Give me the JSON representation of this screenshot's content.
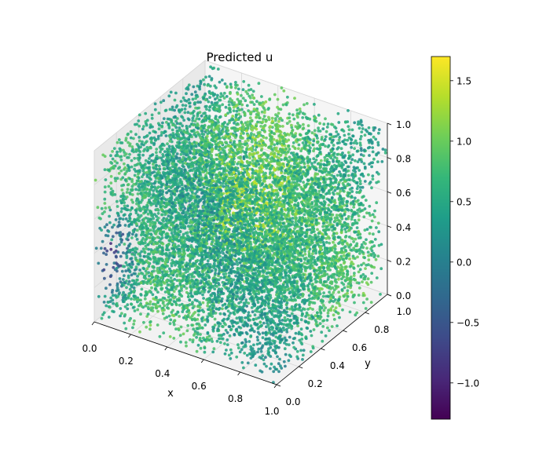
{
  "chart_data": {
    "type": "scatter",
    "projection": "3d",
    "title": "Predicted u",
    "xlabel": "x",
    "ylabel": "y",
    "zlabel": "",
    "xlim": [
      0,
      1
    ],
    "ylim": [
      0,
      1
    ],
    "zlim": [
      0,
      1
    ],
    "xticks": [
      "0.0",
      "0.2",
      "0.4",
      "0.6",
      "0.8",
      "1.0"
    ],
    "yticks": [
      "0.0",
      "0.2",
      "0.4",
      "0.6",
      "0.8",
      "1.0"
    ],
    "zticks": [
      "0.0",
      "0.2",
      "0.4",
      "0.6",
      "0.8",
      "1.0"
    ],
    "grid": true,
    "colormap": "viridis",
    "color_range": [
      -1.3,
      1.7
    ],
    "colorbar_ticks": [
      "−1.0",
      "−0.5",
      "0.0",
      "0.5",
      "1.0",
      "1.5"
    ],
    "colorbar_tick_values": [
      -1.0,
      -0.5,
      0.0,
      0.5,
      1.0,
      1.5
    ],
    "point_count": 10000,
    "points_sample": [
      {
        "x": 0.05,
        "y": 0.1,
        "z": 0.4,
        "u": -1.1
      },
      {
        "x": 0.08,
        "y": 0.15,
        "z": 0.3,
        "u": -0.9
      },
      {
        "x": 0.3,
        "y": 0.6,
        "z": 0.6,
        "u": 1.4
      },
      {
        "x": 0.45,
        "y": 0.55,
        "z": 0.5,
        "u": 1.5
      },
      {
        "x": 0.6,
        "y": 0.4,
        "z": 0.7,
        "u": 1.2
      },
      {
        "x": 0.8,
        "y": 0.7,
        "z": 0.5,
        "u": 0.2
      },
      {
        "x": 0.9,
        "y": 0.9,
        "z": 0.9,
        "u": 0.8
      },
      {
        "x": 0.2,
        "y": 0.3,
        "z": 0.2,
        "u": 0.1
      }
    ]
  }
}
